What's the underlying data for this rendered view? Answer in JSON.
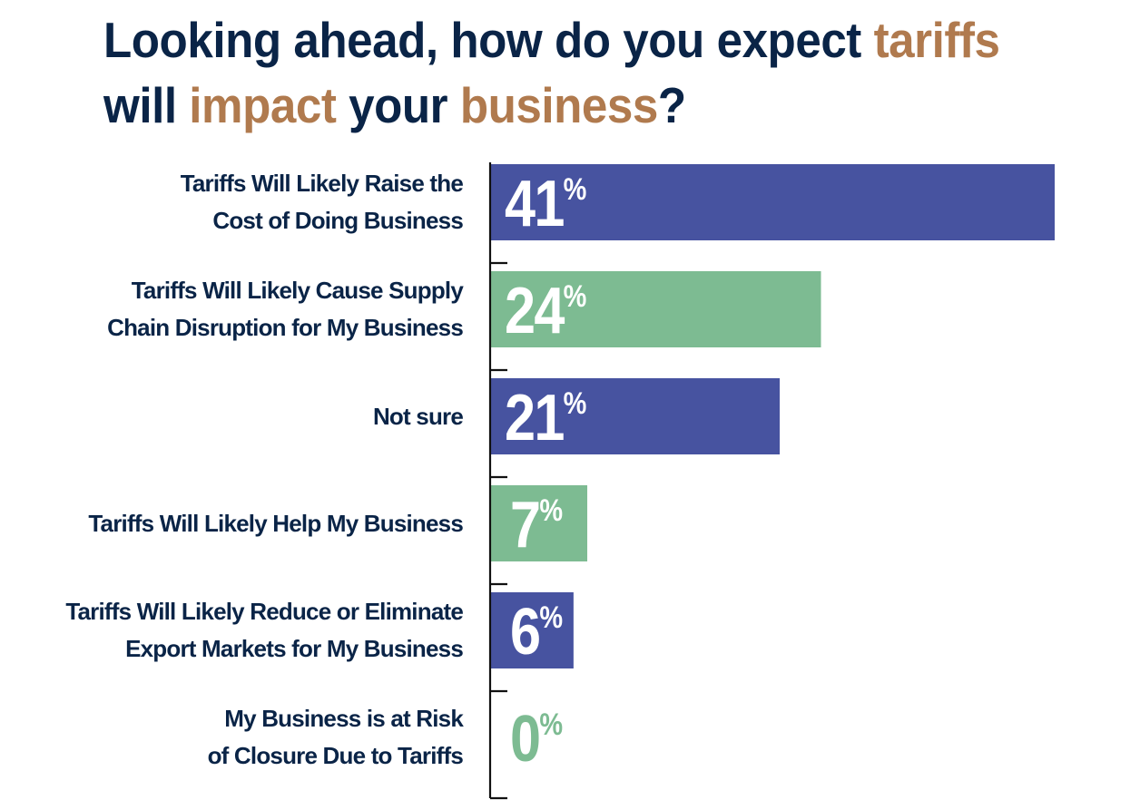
{
  "title": {
    "line1": [
      {
        "text": "Looking ahead, how do you expect ",
        "accent": false
      },
      {
        "text": "tariffs",
        "accent": true
      }
    ],
    "line2": [
      {
        "text": "will ",
        "accent": false
      },
      {
        "text": "impact",
        "accent": true
      },
      {
        "text": " your ",
        "accent": false
      },
      {
        "text": "business",
        "accent": true
      },
      {
        "text": "?",
        "accent": false
      }
    ]
  },
  "colors": {
    "title_dark": "#0a2447",
    "title_accent": "#b07a4e",
    "bar_blue": "#4753a0",
    "bar_green": "#7dbb92",
    "axis": "#111111"
  },
  "chart_data": {
    "type": "bar",
    "orientation": "horizontal",
    "title": "Looking ahead, how do you expect tariffs will impact your business?",
    "xlabel": "",
    "ylabel": "",
    "xlim": [
      0,
      41
    ],
    "grid": false,
    "legend": "none",
    "categories": [
      "Tariffs Will Likely Raise the\nCost of Doing Business",
      "Tariffs Will Likely Cause Supply\nChain Disruption for My Business",
      "Not sure",
      "Tariffs Will Likely Help My Business",
      "Tariffs Will Likely Reduce or Eliminate\nExport Markets for My Business",
      "My Business is at Risk\nof Closure Due to Tariffs"
    ],
    "values": [
      41,
      24,
      21,
      7,
      6,
      0
    ],
    "value_labels": [
      "41",
      "24",
      "21",
      "7",
      "6",
      "0"
    ],
    "value_suffix": "%",
    "bar_colors": [
      "#4753a0",
      "#7dbb92",
      "#4753a0",
      "#7dbb92",
      "#4753a0",
      "#7dbb92"
    ]
  }
}
